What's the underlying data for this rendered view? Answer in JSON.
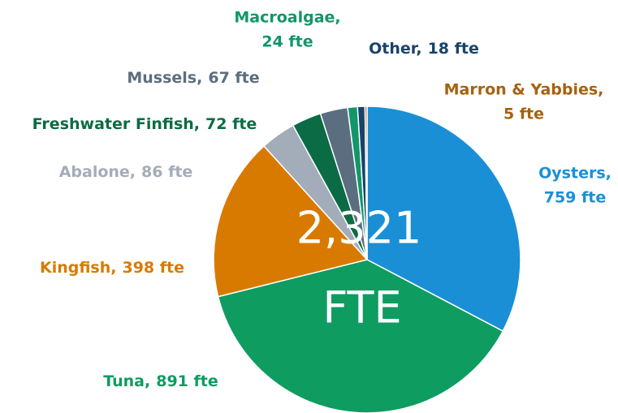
{
  "chart_data": {
    "type": "pie",
    "categories": [
      "Oysters,",
      "Tuna,",
      "Kingfish,",
      "Abalone,",
      "Freshwater Finfish,",
      "Mussels,",
      "Macroalgae,",
      "Other,",
      "Marron & Yabbies,"
    ],
    "values": [
      759,
      891,
      398,
      86,
      72,
      67,
      24,
      18,
      5
    ],
    "value_labels": [
      "759 fte",
      "891 fte",
      "398 fte",
      "86 fte",
      "72 fte",
      "67 fte",
      "24 fte",
      "18 fte",
      "5 fte"
    ],
    "colors": [
      "#1a8fd6",
      "#0e9c61",
      "#d97a00",
      "#a3acb9",
      "#0b6b45",
      "#5b6e80",
      "#12966a",
      "#17436a",
      "#b5651d"
    ],
    "center_text": [
      "2,321",
      "FTE"
    ]
  }
}
